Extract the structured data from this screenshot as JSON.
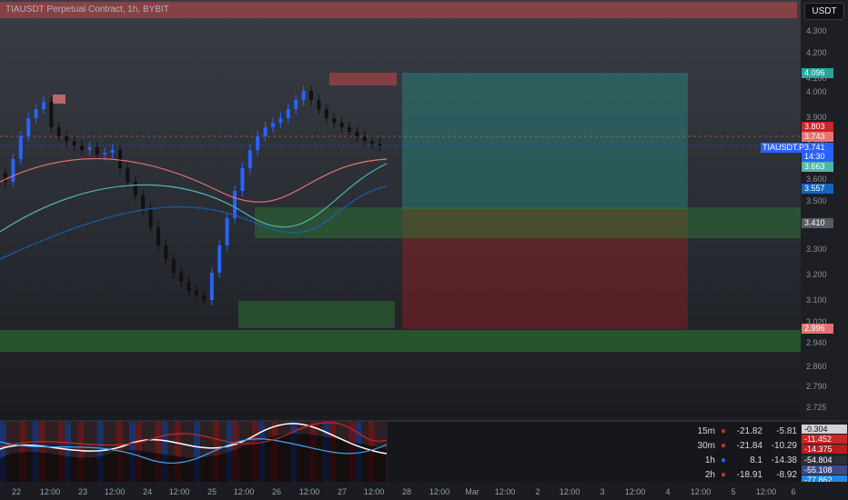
{
  "title": "TIAUSDT Perpetual Contract, 1h, BYBIT",
  "currency": "USDT",
  "symbol": "TIAUSDT.P",
  "price_ticks": [
    "4.300",
    "4.200",
    "4.100",
    "4.000",
    "3.900",
    "3.800",
    "3.700",
    "3.600",
    "3.500",
    "3.400",
    "3.300",
    "3.200",
    "3.100",
    "3.020",
    "2.940",
    "2.860",
    "2.790",
    "2.725"
  ],
  "price_tags": {
    "target": "4.096",
    "high": "3.803",
    "marker": "3.743",
    "last": "3.741",
    "countdown": "14:30",
    "ema": "3.663",
    "ema2": "3.557",
    "level": "3.410",
    "stop": "2.996"
  },
  "time_labels": [
    "22",
    "12:00",
    "23",
    "12:00",
    "24",
    "12:00",
    "25",
    "12:00",
    "26",
    "12:00",
    "27",
    "12:00",
    "28",
    "12:00",
    "Mar",
    "12:00",
    "2",
    "12:00",
    "3",
    "12:00",
    "4",
    "12:00",
    "5",
    "12:00",
    "6"
  ],
  "indicator_table": [
    {
      "tf": "15m",
      "v1": "-21.82",
      "v2": "-5.81",
      "dot": "#c9302c"
    },
    {
      "tf": "30m",
      "v1": "-21.84",
      "v2": "-10.29",
      "dot": "#c9302c"
    },
    {
      "tf": "1h",
      "v1": "8.1",
      "v2": "-14.38",
      "dot": "#2962ff"
    },
    {
      "tf": "2h",
      "v1": "-18.91",
      "v2": "-8.92",
      "dot": "#c9302c"
    }
  ],
  "indicator_tags": [
    "-0.304",
    "-11.452",
    "-14.375",
    "-54.804",
    "-55.108",
    "-77.862"
  ],
  "colors": {
    "up": "#2962ff",
    "down": "#1a1a1a",
    "bull_zone": "#2e7d32",
    "bear_zone": "#b71c1c",
    "target_zone": "#26a69a"
  }
}
